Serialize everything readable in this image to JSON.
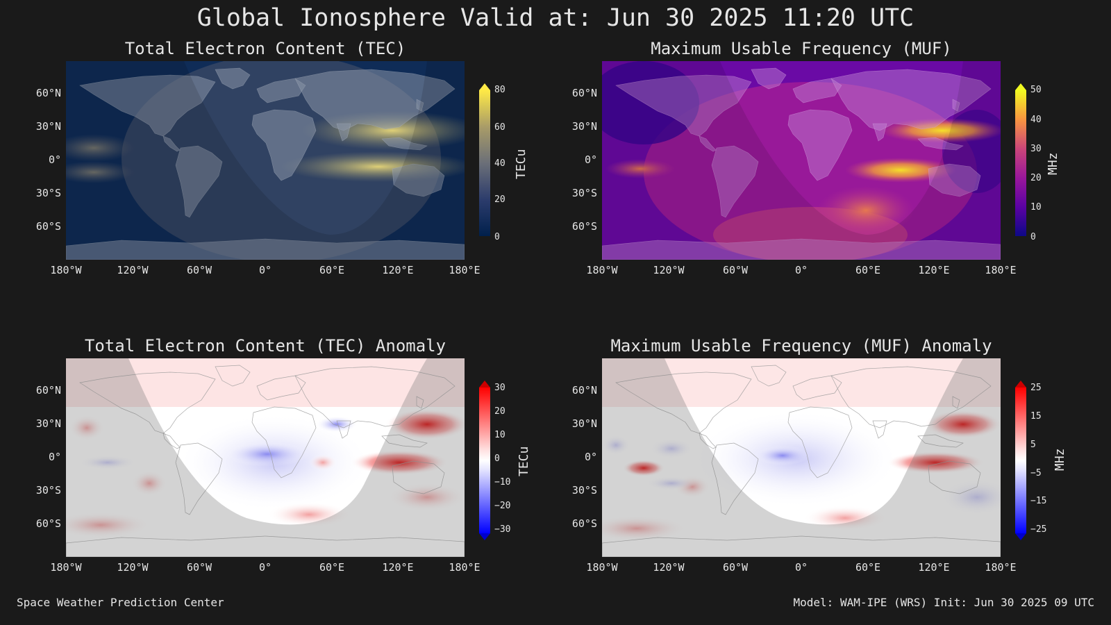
{
  "title": "Global Ionosphere Valid at: Jun 30 2025 11:20 UTC",
  "panels": {
    "tec": {
      "title": "Total Electron Content (TEC)",
      "unit": "TECu",
      "ticks": [
        "80",
        "60",
        "40",
        "20",
        "0"
      ],
      "colormap": "cividis",
      "colors": [
        "#00204c",
        "#2c3c6c",
        "#5a6878",
        "#8a8a78",
        "#c8b85a",
        "#ffea46"
      ]
    },
    "muf": {
      "title": "Maximum Usable Frequency (MUF)",
      "unit": "MHz",
      "ticks": [
        "50",
        "40",
        "30",
        "20",
        "10",
        "0"
      ],
      "colormap": "plasma",
      "colors": [
        "#0d0887",
        "#5b02a3",
        "#9a179b",
        "#cb4679",
        "#eb7852",
        "#fbb32f",
        "#f0f921"
      ]
    },
    "tec_anomaly": {
      "title": "Total Electron Content (TEC) Anomaly",
      "unit": "TECu",
      "ticks": [
        "30",
        "20",
        "10",
        "0",
        "−10",
        "−20",
        "−30"
      ],
      "colormap": "bwr",
      "colors": [
        "#0000ff",
        "#ffffff",
        "#ff0000"
      ]
    },
    "muf_anomaly": {
      "title": "Maximum Usable Frequency (MUF) Anomaly",
      "unit": "MHz",
      "ticks": [
        "25",
        "15",
        "5",
        "−5",
        "−15",
        "−25"
      ],
      "colormap": "bwr",
      "colors": [
        "#0000ff",
        "#ffffff",
        "#ff0000"
      ]
    }
  },
  "axes": {
    "lat_labels": [
      "60°N",
      "30°N",
      "0°",
      "30°S",
      "60°S"
    ],
    "lon_labels": [
      "180°W",
      "120°W",
      "60°W",
      "0°",
      "60°E",
      "120°E",
      "180°E"
    ]
  },
  "footer": {
    "left": "Space Weather Prediction Center",
    "right": "Model: WAM-IPE (WRS) Init: Jun 30 2025 09 UTC"
  }
}
